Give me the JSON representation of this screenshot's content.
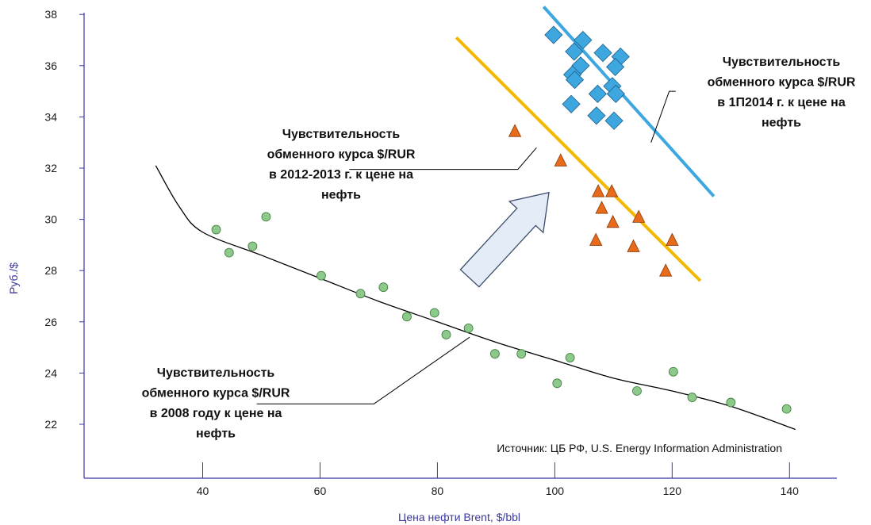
{
  "chart_data": {
    "type": "scatter",
    "xlabel": "Цена нефти Brent, $/bbl",
    "ylabel": "Руб./$",
    "xlim": [
      20,
      142
    ],
    "ylim": [
      20,
      38.2
    ],
    "x_ticks": [
      40,
      60,
      80,
      100,
      120,
      140
    ],
    "y_ticks": [
      22,
      24,
      26,
      28,
      30,
      32,
      34,
      36,
      38
    ],
    "grid": false,
    "legend": "none",
    "series": [
      {
        "marker": "circle",
        "color": "#8cc98a",
        "points": [
          [
            42.3,
            29.6
          ],
          [
            44.5,
            28.7
          ],
          [
            48.5,
            28.95
          ],
          [
            50.8,
            30.1
          ],
          [
            60.2,
            27.8
          ],
          [
            66.9,
            27.1
          ],
          [
            70.8,
            27.35
          ],
          [
            74.8,
            26.2
          ],
          [
            79.5,
            26.35
          ],
          [
            81.5,
            25.5
          ],
          [
            85.3,
            25.75
          ],
          [
            89.8,
            24.75
          ],
          [
            94.3,
            24.75
          ],
          [
            100.4,
            23.6
          ],
          [
            102.6,
            24.6
          ],
          [
            114.0,
            23.3
          ],
          [
            120.2,
            24.05
          ],
          [
            123.4,
            23.05
          ],
          [
            130.0,
            22.85
          ],
          [
            139.5,
            22.6
          ]
        ],
        "trendline": {
          "kind": "curve",
          "color": "#000000",
          "points": [
            [
              32,
              32.1
            ],
            [
              36,
              30.5
            ],
            [
              40,
              29.5
            ],
            [
              50,
              28.6
            ],
            [
              60,
              27.7
            ],
            [
              70,
              26.8
            ],
            [
              80,
              26.0
            ],
            [
              90,
              25.2
            ],
            [
              100,
              24.5
            ],
            [
              110,
              23.8
            ],
            [
              120,
              23.3
            ],
            [
              130,
              22.7
            ],
            [
              141,
              21.8
            ]
          ]
        }
      },
      {
        "marker": "triangle",
        "color": "#e86b1c",
        "points": [
          [
            93.2,
            33.45
          ],
          [
            101.0,
            32.3
          ],
          [
            107.4,
            31.1
          ],
          [
            109.7,
            31.1
          ],
          [
            108.0,
            30.45
          ],
          [
            109.9,
            29.9
          ],
          [
            114.3,
            30.1
          ],
          [
            107.0,
            29.2
          ],
          [
            113.4,
            28.95
          ],
          [
            120.0,
            29.2
          ],
          [
            118.9,
            28.0
          ]
        ],
        "trendline": {
          "kind": "line",
          "color": "#f5b800",
          "points": [
            [
              83.2,
              37.1
            ],
            [
              124.8,
              27.6
            ]
          ]
        }
      },
      {
        "marker": "diamond",
        "color": "#3ea7df",
        "points": [
          [
            99.8,
            37.2
          ],
          [
            104.8,
            37.0
          ],
          [
            103.3,
            36.55
          ],
          [
            108.2,
            36.5
          ],
          [
            111.2,
            36.35
          ],
          [
            104.4,
            36.0
          ],
          [
            110.3,
            35.95
          ],
          [
            103.0,
            35.65
          ],
          [
            103.4,
            35.45
          ],
          [
            109.8,
            35.2
          ],
          [
            107.3,
            34.9
          ],
          [
            110.4,
            34.9
          ],
          [
            102.8,
            34.5
          ],
          [
            107.1,
            34.05
          ],
          [
            110.1,
            33.85
          ]
        ],
        "trendline": {
          "kind": "line",
          "color": "#3ea7df",
          "points": [
            [
              98.1,
              38.3
            ],
            [
              127.1,
              30.9
            ]
          ]
        }
      }
    ],
    "annotations": [
      {
        "lines": [
          "Чувствительность",
          "обменного курса $/RUR",
          "в 2008 году к цене на",
          "нефть"
        ],
        "leader": [
          [
            85.5,
            25.4
          ],
          [
            69.2,
            22.8
          ],
          [
            49.2,
            22.8
          ]
        ]
      },
      {
        "lines": [
          "Чувствительность",
          "обменного курса $/RUR",
          "в 2012-2013 г. к цене на",
          "нефть"
        ],
        "leader": [
          [
            96.9,
            32.8
          ],
          [
            93.7,
            31.95
          ],
          [
            65.0,
            31.95
          ]
        ]
      },
      {
        "lines": [
          "Чувствительность",
          "обменного курса $/RUR",
          "в 1П2014 г. к цене на",
          "нефть"
        ],
        "leader": [
          [
            116.4,
            33.0
          ],
          [
            119.5,
            35.0
          ],
          [
            120.6,
            35.0
          ]
        ]
      }
    ],
    "arrow": {
      "from": [
        85.5,
        27.7
      ],
      "to": [
        99.0,
        31.05
      ],
      "fill": "#e4edf7",
      "stroke": "#3a4d6b"
    },
    "source_note": "Источник: ЦБ РФ, U.S. Energy Information Administration"
  }
}
